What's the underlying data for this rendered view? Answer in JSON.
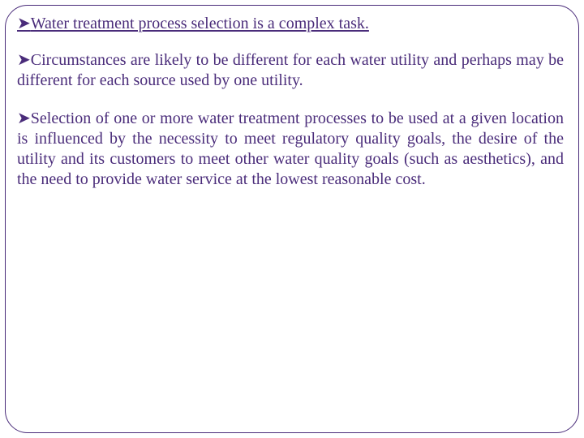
{
  "colors": {
    "text": "#4a2c7a",
    "border": "#4a2c7a",
    "background": "#ffffff"
  },
  "font": {
    "family": "Georgia, 'Times New Roman', serif",
    "size_pt": 15,
    "line_height": 1.25
  },
  "bullet_char": "➤",
  "paragraphs": [
    {
      "text": "Water treatment process selection is a complex task.",
      "underline": true
    },
    {
      "text": "Circumstances are likely to be different for each water utility and perhaps may be different for each source used by one utility.",
      "underline": false
    },
    {
      "text": "Selection of one or more water treatment processes to be used at a given location is influenced by the necessity to meet regulatory quality goals, the desire of the utility and its customers to meet other water quality goals (such as aesthetics), and the need to provide water service at the lowest reasonable cost.",
      "underline": false
    }
  ]
}
